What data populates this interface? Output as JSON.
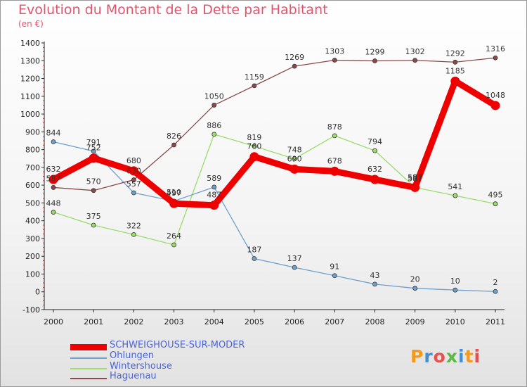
{
  "title": "Evolution du Montant de la Dette par Habitant",
  "unit": "(en €)",
  "logo": {
    "text": "Proxiti",
    "colors": [
      "#f39a1e",
      "#3f8fd2",
      "#e84f4f",
      "#5ab845",
      "#3f8fd2",
      "#f39a1e",
      "#e84f4f"
    ]
  },
  "chart_data": {
    "type": "line",
    "title": "Evolution du Montant de la Dette par Habitant",
    "ylabel": "(en €)",
    "x": [
      "2000",
      "2001",
      "2002",
      "2003",
      "2004",
      "2005",
      "2006",
      "2007",
      "2008",
      "2009",
      "2010",
      "2011"
    ],
    "ylim": [
      -100,
      1400
    ],
    "yticks": [
      -100,
      0,
      100,
      200,
      300,
      400,
      500,
      600,
      700,
      800,
      900,
      1000,
      1100,
      1200,
      1300,
      1400
    ],
    "grid": false,
    "legend_position": "bottom-left",
    "series": [
      {
        "name": "SCHWEIGHOUSE-SUR-MODER",
        "color": "#ee0000",
        "width": 9,
        "values": [
          632,
          752,
          680,
          497,
          487,
          760,
          690,
          678,
          632,
          587,
          1185,
          1048
        ],
        "labels": [
          "632",
          "752",
          "680",
          "497",
          "487",
          "760",
          "690",
          "678",
          "632",
          "587",
          "1185",
          "1048"
        ]
      },
      {
        "name": "Ohlungen",
        "color": "#6fa0cc",
        "width": 1.3,
        "values": [
          844,
          791,
          557,
          510,
          589,
          187,
          137,
          91,
          43,
          20,
          10,
          2
        ],
        "labels": [
          "844",
          "791",
          "557",
          "510",
          "589",
          "187",
          "137",
          "91",
          "43",
          "20",
          "10",
          "2"
        ]
      },
      {
        "name": "Wintershouse",
        "color": "#9bdc6a",
        "width": 1.3,
        "values": [
          448,
          375,
          322,
          264,
          886,
          819,
          748,
          878,
          794,
          587,
          541,
          495
        ],
        "labels": [
          "448",
          "375",
          "322",
          "264",
          "886",
          "819",
          "748",
          "878",
          "794",
          "587",
          "541",
          "495"
        ]
      },
      {
        "name": "Haguenau",
        "color": "#8b4a4a",
        "width": 1.3,
        "values": [
          587,
          570,
          630,
          826,
          1050,
          1159,
          1269,
          1303,
          1299,
          1302,
          1292,
          1316
        ],
        "labels": [
          "587",
          "570",
          "630",
          "826",
          "1050",
          "1159",
          "1269",
          "1303",
          "1299",
          "1302",
          "1292",
          "1316"
        ]
      }
    ]
  }
}
